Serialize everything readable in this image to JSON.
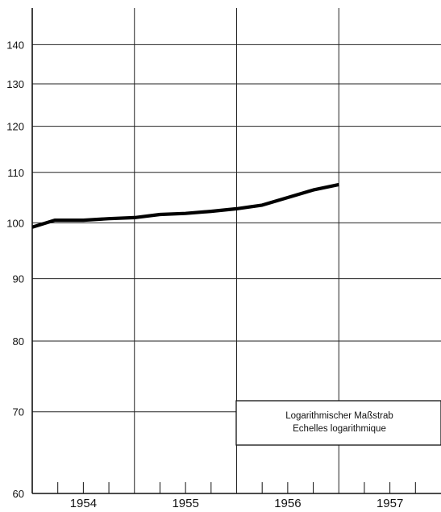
{
  "chart_data": {
    "type": "line",
    "title": "",
    "xlabel": "",
    "ylabel": "",
    "y_scale": "log",
    "ylim": [
      60,
      150
    ],
    "yticks": [
      60,
      70,
      80,
      90,
      100,
      110,
      120,
      130,
      140
    ],
    "xlim": [
      1953.75,
      1957.75
    ],
    "x_year_labels": [
      "1954",
      "1955",
      "1956",
      "1957"
    ],
    "grid": true,
    "series": [
      {
        "x": [
          1953.75,
          1953.97,
          1954.25,
          1954.5,
          1954.75,
          1955.0,
          1955.25,
          1955.5,
          1955.75,
          1956.0,
          1956.25,
          1956.5,
          1956.75
        ],
        "y": [
          99.2,
          100.5,
          100.5,
          100.8,
          101.0,
          101.6,
          101.8,
          102.2,
          102.7,
          103.4,
          104.9,
          106.4,
          107.5
        ],
        "color": "#000000"
      }
    ],
    "annotation": {
      "lines": [
        "Logarithmischer Maßstrab",
        "Echelles logarithmique"
      ]
    }
  }
}
